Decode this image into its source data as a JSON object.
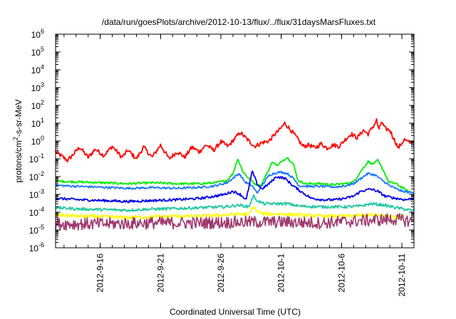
{
  "chart_data": {
    "type": "line",
    "title": "/data/run/goesPlots/archive/2012-10-13/flux/../flux/31daysMarsFluxes.txt",
    "xlabel": "Coordinated Universal Time (UTC)",
    "ylabel_parts": {
      "base": "protons/cm",
      "exp": "2",
      "rest": "-s-sr-MeV"
    },
    "yscale": "log",
    "ylim": [
      1e-06,
      1000000.0
    ],
    "yticks": [
      {
        "base": "10",
        "exp": "6"
      },
      {
        "base": "10",
        "exp": "5"
      },
      {
        "base": "10",
        "exp": "4"
      },
      {
        "base": "10",
        "exp": "3"
      },
      {
        "base": "10",
        "exp": "2"
      },
      {
        "base": "10",
        "exp": "1"
      },
      {
        "base": "10",
        "exp": "0"
      },
      {
        "base": "10",
        "exp": "-1"
      },
      {
        "base": "10",
        "exp": "-2"
      },
      {
        "base": "10",
        "exp": "-3"
      },
      {
        "base": "10",
        "exp": "-4"
      },
      {
        "base": "10",
        "exp": "-5"
      },
      {
        "base": "10",
        "exp": "-6"
      }
    ],
    "xlim_days": [
      12.3,
      42.0
    ],
    "xticks": [
      {
        "label": "2012-9-16",
        "day": 16
      },
      {
        "label": "2012-9-21",
        "day": 21
      },
      {
        "label": "2012-9-26",
        "day": 26
      },
      {
        "label": "2012-10-1",
        "day": 31
      },
      {
        "label": "2012-10-6",
        "day": 36
      },
      {
        "label": "2012-10-11",
        "day": 41
      }
    ],
    "series": [
      {
        "color": "#ff0000",
        "noise": 0.12,
        "points": [
          [
            12.3,
            0.25
          ],
          [
            13.3,
            0.08
          ],
          [
            14.3,
            0.45
          ],
          [
            15.0,
            0.12
          ],
          [
            15.6,
            0.35
          ],
          [
            16.3,
            0.15
          ],
          [
            17.0,
            0.5
          ],
          [
            17.8,
            0.12
          ],
          [
            18.3,
            0.3
          ],
          [
            19.0,
            0.1
          ],
          [
            19.6,
            0.45
          ],
          [
            20.3,
            0.12
          ],
          [
            21.0,
            0.6
          ],
          [
            21.7,
            0.1
          ],
          [
            22.4,
            0.25
          ],
          [
            23.0,
            0.12
          ],
          [
            23.6,
            0.45
          ],
          [
            24.2,
            0.25
          ],
          [
            24.8,
            0.6
          ],
          [
            25.4,
            0.3
          ],
          [
            26.0,
            0.9
          ],
          [
            26.6,
            0.5
          ],
          [
            27.2,
            1.5
          ],
          [
            27.6,
            3.0
          ],
          [
            28.2,
            1.2
          ],
          [
            28.8,
            0.5
          ],
          [
            29.4,
            0.8
          ],
          [
            30.0,
            1.0
          ],
          [
            30.5,
            2.5
          ],
          [
            30.9,
            4.5
          ],
          [
            31.3,
            10.0
          ],
          [
            31.8,
            4.0
          ],
          [
            32.3,
            1.5
          ],
          [
            32.8,
            0.5
          ],
          [
            33.3,
            0.6
          ],
          [
            33.8,
            0.4
          ],
          [
            34.3,
            0.7
          ],
          [
            34.8,
            0.4
          ],
          [
            35.3,
            0.6
          ],
          [
            35.8,
            0.5
          ],
          [
            36.3,
            1.2
          ],
          [
            36.8,
            2.5
          ],
          [
            37.3,
            1.5
          ],
          [
            37.8,
            4.0
          ],
          [
            38.2,
            2.5
          ],
          [
            38.7,
            8.0
          ],
          [
            38.9,
            15.0
          ],
          [
            39.1,
            4.0
          ],
          [
            39.3,
            12.0
          ],
          [
            39.6,
            5.0
          ],
          [
            40.0,
            4.0
          ],
          [
            40.3,
            1.5
          ],
          [
            40.7,
            0.4
          ],
          [
            41.2,
            1.2
          ],
          [
            41.6,
            0.8
          ],
          [
            42.0,
            1.0
          ]
        ]
      },
      {
        "color": "#00ee00",
        "noise": 0.06,
        "points": [
          [
            12.3,
            0.0055
          ],
          [
            14.3,
            0.005
          ],
          [
            16.3,
            0.0045
          ],
          [
            18.3,
            0.004
          ],
          [
            20.3,
            0.0045
          ],
          [
            22.3,
            0.004
          ],
          [
            24.3,
            0.004
          ],
          [
            25.5,
            0.0045
          ],
          [
            26.5,
            0.006
          ],
          [
            27.0,
            0.015
          ],
          [
            27.4,
            0.1
          ],
          [
            27.8,
            0.02
          ],
          [
            28.3,
            0.008
          ],
          [
            28.8,
            0.004
          ],
          [
            29.3,
            0.003
          ],
          [
            29.9,
            0.02
          ],
          [
            30.3,
            0.07
          ],
          [
            30.7,
            0.04
          ],
          [
            31.1,
            0.08
          ],
          [
            31.5,
            0.12
          ],
          [
            32.0,
            0.05
          ],
          [
            32.4,
            0.006
          ],
          [
            33.0,
            0.004
          ],
          [
            34.3,
            0.004
          ],
          [
            35.3,
            0.0035
          ],
          [
            36.3,
            0.004
          ],
          [
            37.0,
            0.005
          ],
          [
            37.6,
            0.02
          ],
          [
            38.2,
            0.07
          ],
          [
            38.6,
            0.05
          ],
          [
            39.0,
            0.08
          ],
          [
            39.5,
            0.02
          ],
          [
            39.9,
            0.005
          ],
          [
            40.5,
            0.004
          ],
          [
            41.0,
            0.0025
          ],
          [
            41.5,
            0.0015
          ],
          [
            42.0,
            0.0012
          ]
        ]
      },
      {
        "color": "#1e78ff",
        "noise": 0.06,
        "points": [
          [
            12.3,
            0.0032
          ],
          [
            14.3,
            0.0028
          ],
          [
            16.3,
            0.0025
          ],
          [
            18.3,
            0.0022
          ],
          [
            20.3,
            0.0024
          ],
          [
            22.3,
            0.0022
          ],
          [
            24.3,
            0.0025
          ],
          [
            25.5,
            0.003
          ],
          [
            26.5,
            0.0045
          ],
          [
            27.0,
            0.008
          ],
          [
            27.5,
            0.015
          ],
          [
            28.0,
            0.005
          ],
          [
            28.6,
            0.003
          ],
          [
            29.0,
            0.0012
          ],
          [
            29.5,
            0.004
          ],
          [
            30.0,
            0.012
          ],
          [
            30.5,
            0.016
          ],
          [
            31.0,
            0.018
          ],
          [
            31.5,
            0.015
          ],
          [
            32.0,
            0.008
          ],
          [
            32.5,
            0.003
          ],
          [
            33.5,
            0.0028
          ],
          [
            34.5,
            0.0028
          ],
          [
            35.5,
            0.0026
          ],
          [
            36.3,
            0.003
          ],
          [
            37.0,
            0.004
          ],
          [
            37.6,
            0.008
          ],
          [
            38.2,
            0.015
          ],
          [
            38.8,
            0.012
          ],
          [
            39.4,
            0.006
          ],
          [
            40.0,
            0.003
          ],
          [
            41.0,
            0.0015
          ],
          [
            42.0,
            0.0012
          ]
        ]
      },
      {
        "color": "#0000ee",
        "noise": 0.07,
        "points": [
          [
            12.3,
            0.0006
          ],
          [
            14.3,
            0.0005
          ],
          [
            16.3,
            0.00045
          ],
          [
            18.3,
            0.0004
          ],
          [
            20.3,
            0.00045
          ],
          [
            22.3,
            0.0005
          ],
          [
            24.3,
            0.0006
          ],
          [
            25.5,
            0.0008
          ],
          [
            26.3,
            0.001
          ],
          [
            27.0,
            0.0015
          ],
          [
            27.6,
            0.001
          ],
          [
            28.1,
            0.0005
          ],
          [
            28.6,
            0.02
          ],
          [
            29.0,
            0.004
          ],
          [
            29.4,
            0.002
          ],
          [
            30.0,
            0.004
          ],
          [
            30.6,
            0.01
          ],
          [
            31.3,
            0.008
          ],
          [
            32.0,
            0.003
          ],
          [
            32.6,
            0.0015
          ],
          [
            33.5,
            0.0006
          ],
          [
            34.5,
            0.0005
          ],
          [
            35.5,
            0.0005
          ],
          [
            36.3,
            0.0006
          ],
          [
            37.0,
            0.0008
          ],
          [
            37.6,
            0.0015
          ],
          [
            38.4,
            0.002
          ],
          [
            39.0,
            0.0015
          ],
          [
            39.6,
            0.0008
          ],
          [
            40.5,
            0.0006
          ],
          [
            41.3,
            0.0005
          ],
          [
            42.0,
            0.0006
          ]
        ]
      },
      {
        "color": "#20c8a0",
        "noise": 0.08,
        "points": [
          [
            12.3,
            0.00018
          ],
          [
            14.3,
            0.00015
          ],
          [
            16.3,
            0.00014
          ],
          [
            18.3,
            0.00013
          ],
          [
            20.3,
            0.00015
          ],
          [
            22.3,
            0.00016
          ],
          [
            24.3,
            0.00018
          ],
          [
            26.3,
            0.0002
          ],
          [
            27.5,
            0.00025
          ],
          [
            28.3,
            0.0002
          ],
          [
            28.7,
            0.0008
          ],
          [
            29.1,
            0.0004
          ],
          [
            29.6,
            0.0003
          ],
          [
            30.5,
            0.0003
          ],
          [
            31.5,
            0.0003
          ],
          [
            32.5,
            0.00022
          ],
          [
            34.3,
            0.0002
          ],
          [
            36.3,
            0.0002
          ],
          [
            37.5,
            0.00022
          ],
          [
            38.5,
            0.0003
          ],
          [
            39.5,
            0.00025
          ],
          [
            40.5,
            0.00018
          ],
          [
            42.0,
            0.00012
          ]
        ]
      },
      {
        "color": "#ffff00",
        "noise": 0.1,
        "points": [
          [
            12.3,
            7e-05
          ],
          [
            14.3,
            6e-05
          ],
          [
            16.3,
            5.5e-05
          ],
          [
            18.3,
            5e-05
          ],
          [
            20.3,
            5.5e-05
          ],
          [
            22.3,
            6e-05
          ],
          [
            24.3,
            6e-05
          ],
          [
            26.3,
            7e-05
          ],
          [
            27.5,
            8e-05
          ],
          [
            28.3,
            7e-05
          ],
          [
            28.7,
            0.0002
          ],
          [
            29.1,
            0.0001
          ],
          [
            29.6,
            8e-05
          ],
          [
            31.0,
            8e-05
          ],
          [
            32.5,
            7e-05
          ],
          [
            34.3,
            6e-05
          ],
          [
            36.3,
            6e-05
          ],
          [
            38.3,
            7e-05
          ],
          [
            40.0,
            6e-05
          ],
          [
            40.5,
            5e-05
          ],
          [
            41.2,
            6e-05
          ]
        ]
      },
      {
        "color": "#9e3a6e",
        "noise": 0.35,
        "points": [
          [
            12.3,
            2.2e-05
          ],
          [
            16.3,
            2.2e-05
          ],
          [
            20.3,
            2.5e-05
          ],
          [
            24.3,
            2.5e-05
          ],
          [
            28.3,
            2.8e-05
          ],
          [
            31.3,
            2.8e-05
          ],
          [
            34.3,
            2.5e-05
          ],
          [
            38.3,
            3.5e-05
          ],
          [
            40.3,
            4e-05
          ],
          [
            41.2,
            3.5e-05
          ],
          [
            42.0,
            3e-05
          ]
        ]
      }
    ]
  }
}
